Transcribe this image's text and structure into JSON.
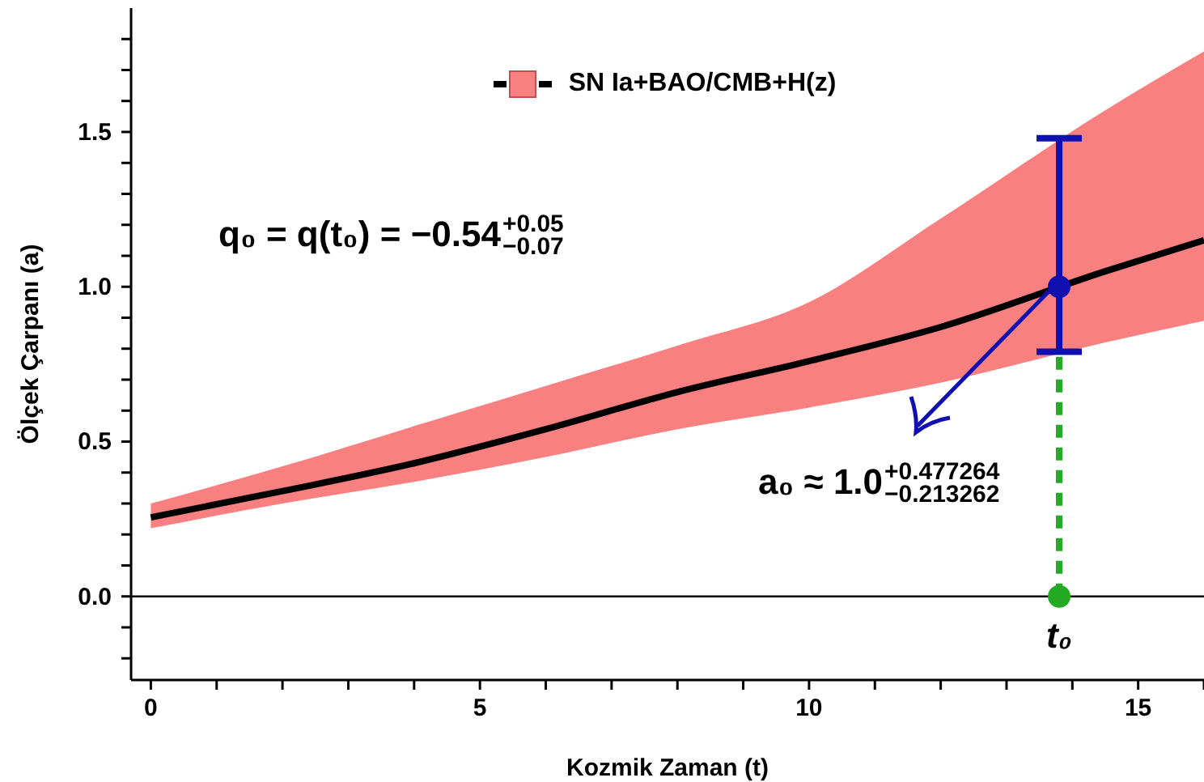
{
  "chart_data": {
    "type": "line",
    "xlabel": "Kozmik Zaman (t)",
    "ylabel": "Ölçek Çarpanı (a)",
    "xlim": [
      -0.3,
      16
    ],
    "ylim": [
      -0.27,
      1.9
    ],
    "xticks": [
      0,
      {
        "value": 1,
        "label": null
      },
      {
        "value": 2,
        "label": null
      },
      {
        "value": 3,
        "label": null
      },
      {
        "value": 4,
        "label": null
      },
      5,
      {
        "value": 6,
        "label": null
      },
      {
        "value": 7,
        "label": null
      },
      {
        "value": 8,
        "label": null
      },
      {
        "value": 9,
        "label": null
      },
      10,
      {
        "value": 11,
        "label": null
      },
      {
        "value": 12,
        "label": null
      },
      {
        "value": 13,
        "label": null
      },
      {
        "value": 14,
        "label": null
      },
      15,
      {
        "value": 16,
        "label": null
      }
    ],
    "yticks": [
      {
        "value": -0.2,
        "label": null
      },
      {
        "value": -0.1,
        "label": null
      },
      {
        "value": 0,
        "label": "0.0"
      },
      {
        "value": 0.1,
        "label": null
      },
      {
        "value": 0.2,
        "label": null
      },
      {
        "value": 0.3,
        "label": null
      },
      {
        "value": 0.4,
        "label": null
      },
      {
        "value": 0.5,
        "label": "0.5"
      },
      {
        "value": 0.6,
        "label": null
      },
      {
        "value": 0.7,
        "label": null
      },
      {
        "value": 0.8,
        "label": null
      },
      {
        "value": 0.9,
        "label": null
      },
      {
        "value": 1.0,
        "label": "1.0"
      },
      {
        "value": 1.1,
        "label": null
      },
      {
        "value": 1.2,
        "label": null
      },
      {
        "value": 1.3,
        "label": null
      },
      {
        "value": 1.4,
        "label": null
      },
      {
        "value": 1.5,
        "label": "1.5"
      },
      {
        "value": 1.6,
        "label": null
      },
      {
        "value": 1.7,
        "label": null
      },
      {
        "value": 1.8,
        "label": null
      }
    ],
    "grid": false,
    "legend": "top",
    "series": [
      {
        "name": "SN Ia+BAO/CMB+H(z)",
        "color": "#000000",
        "x": [
          0,
          2,
          4,
          6,
          8,
          10,
          12,
          14.5,
          16
        ],
        "values": [
          0.255,
          0.34,
          0.43,
          0.54,
          0.66,
          0.76,
          0.87,
          1.05,
          1.15
        ],
        "lower": [
          0.22,
          0.3,
          0.37,
          0.45,
          0.54,
          0.61,
          0.69,
          0.82,
          0.89
        ],
        "upper": [
          0.3,
          0.42,
          0.55,
          0.68,
          0.81,
          0.95,
          1.22,
          1.57,
          1.76
        ]
      },
      {
        "color": "#22aa22",
        "line_style": "dashed",
        "marker": "none",
        "x": [
          13.8,
          13.8
        ],
        "values": [
          0,
          0.79
        ]
      },
      {
        "type": "scatter",
        "color": "#22aa22",
        "marker": "circle",
        "x": [
          13.8
        ],
        "values": [
          0
        ]
      },
      {
        "type": "scatter",
        "color": "#1010b0",
        "marker": "circle",
        "x": [
          13.8
        ],
        "values": [
          1.0
        ],
        "errors": [
          [
            0.79,
            1.48
          ]
        ]
      }
    ],
    "ref_lines": [
      {
        "axis": "y",
        "value": 0,
        "color": "#000000"
      }
    ],
    "annotations": [
      "q₀ = q(t₀) = −0.54$^{+0.05}$$_{−0.07}$",
      {
        "text": "a₀ ≈ 1.0$^{+0.477264}$$_{−0.213262}$",
        "x": 13.8,
        "y": 1.0
      },
      {
        "text": "t₀",
        "x": 13.8,
        "y": 0
      }
    ]
  }
}
